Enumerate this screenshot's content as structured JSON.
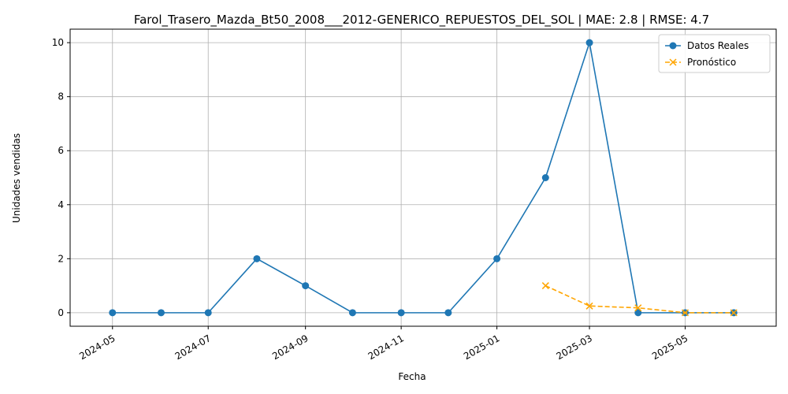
{
  "chart_data": {
    "type": "line",
    "title": "Farol_Trasero_Mazda_Bt50_2008___2012-GENERICO_REPUESTOS_DEL_SOL | MAE: 2.8 | RMSE: 4.7",
    "xlabel": "Fecha",
    "ylabel": "Unidades vendidas",
    "x_ticks": [
      "2024-05",
      "2024-07",
      "2024-09",
      "2024-11",
      "2025-01",
      "2025-03",
      "2025-05"
    ],
    "y_ticks": [
      0,
      2,
      4,
      6,
      8,
      10
    ],
    "ylim": [
      -0.5,
      10.5
    ],
    "xlim": [
      "2024-04-04",
      "2025-06-28"
    ],
    "grid": true,
    "legend_position": "top-right",
    "series": [
      {
        "name": "Datos Reales",
        "color": "#1f77b4",
        "marker": "circle",
        "line_style": "solid",
        "x": [
          "2024-05-01",
          "2024-06-01",
          "2024-07-01",
          "2024-08-01",
          "2024-09-01",
          "2024-10-01",
          "2024-11-01",
          "2024-12-01",
          "2025-01-01",
          "2025-02-01",
          "2025-03-01",
          "2025-04-01",
          "2025-05-01",
          "2025-06-01"
        ],
        "values": [
          0,
          0,
          0,
          2,
          1,
          0,
          0,
          0,
          2,
          5,
          10,
          0,
          0,
          0
        ]
      },
      {
        "name": "Pronóstico",
        "color": "#ffa500",
        "marker": "x",
        "line_style": "dashed",
        "x": [
          "2025-02-01",
          "2025-03-01",
          "2025-04-01",
          "2025-05-01",
          "2025-06-01"
        ],
        "values": [
          1.0,
          0.25,
          0.18,
          0.0,
          0.0
        ]
      }
    ]
  }
}
